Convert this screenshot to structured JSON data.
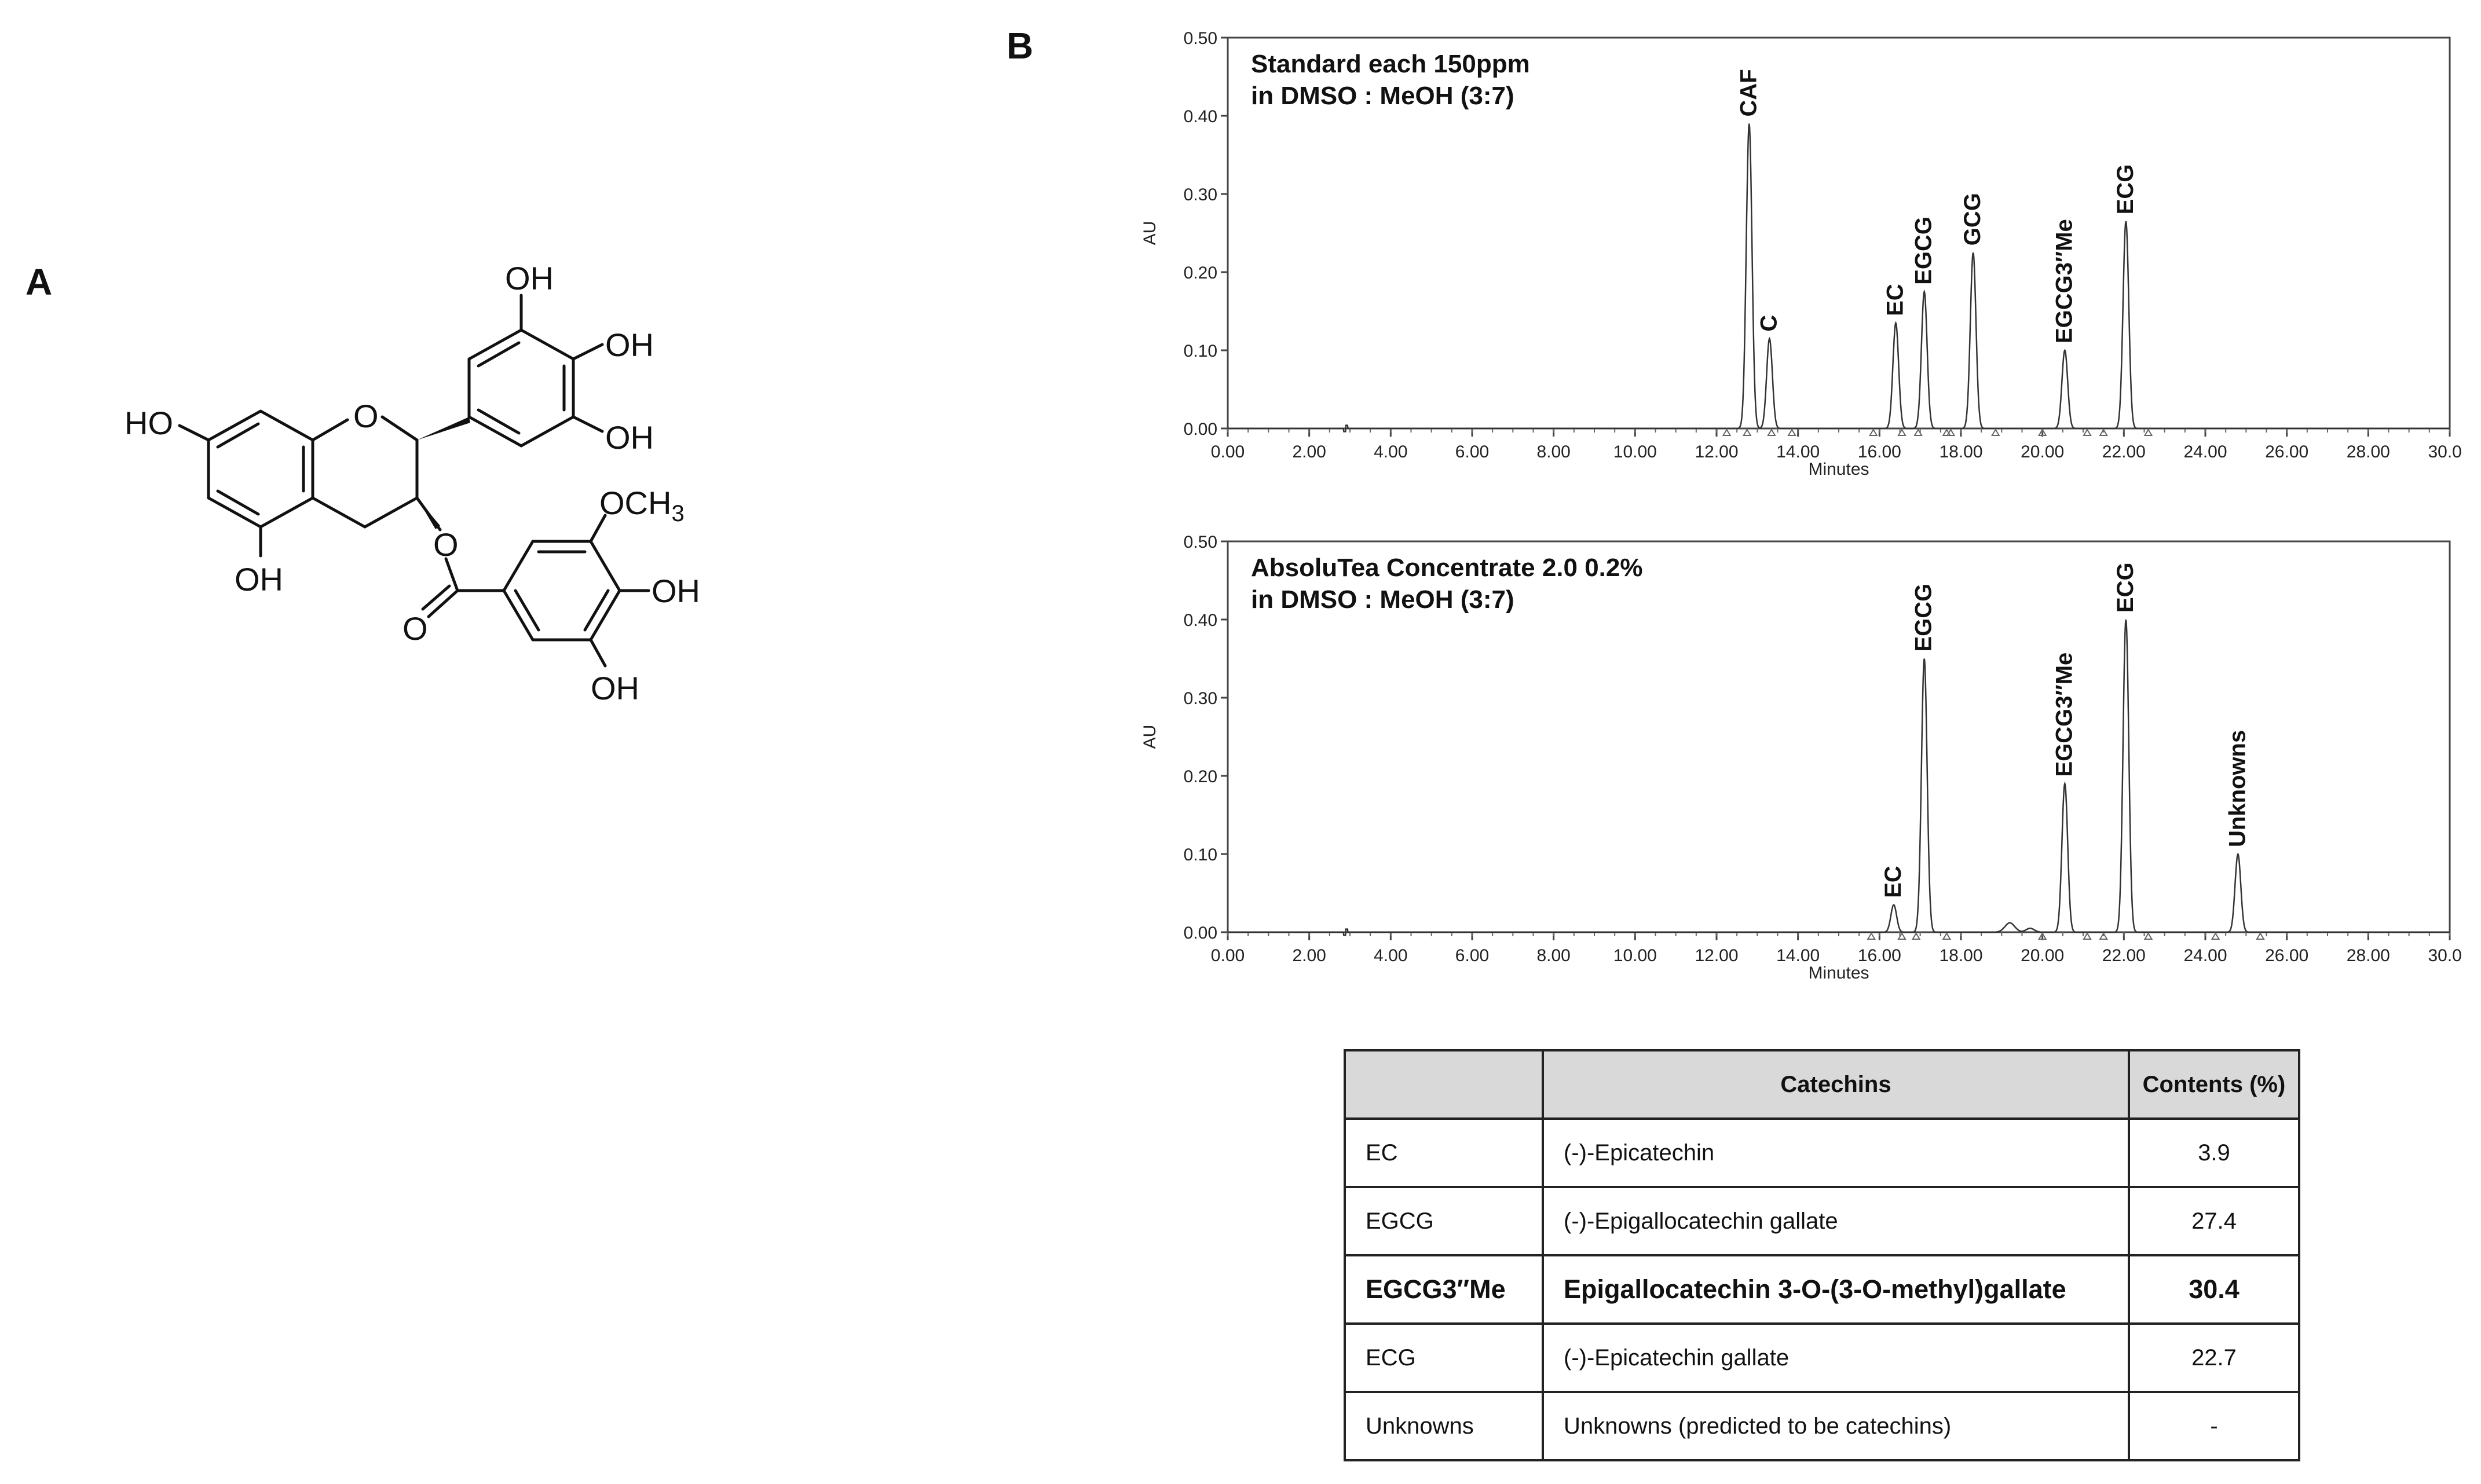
{
  "panel_a_label": "A",
  "panel_b_label": "B",
  "structure_labels": {
    "oh_top": "OH",
    "oh_right": "OH",
    "oh_ring_bottom": "OH",
    "ho_left": "HO",
    "o_ring": "O",
    "o_ester": "O",
    "o_carbonyl": "O",
    "och3": "OCH",
    "och3_sub": "3",
    "oh_gallate_right": "OH",
    "oh_gallate_bottom": "OH",
    "oh_a_bottom": "OH"
  },
  "chart_data": [
    {
      "type": "line",
      "title": "Standard each 150ppm",
      "subtitle": "in DMSO : MeOH (3:7)",
      "xlabel": "Minutes",
      "ylabel": "AU",
      "xlim": [
        0,
        30
      ],
      "ylim": [
        0,
        0.5
      ],
      "xticks": [
        "0.00",
        "2.00",
        "4.00",
        "6.00",
        "8.00",
        "10.00",
        "12.00",
        "14.00",
        "16.00",
        "18.00",
        "20.00",
        "22.00",
        "24.00",
        "26.00",
        "28.00",
        "30.00"
      ],
      "yticks": [
        "0.00",
        "0.10",
        "0.20",
        "0.30",
        "0.40",
        "0.50"
      ],
      "peaks": [
        {
          "label": "CAF",
          "rt": 12.8,
          "height": 0.39
        },
        {
          "label": "C",
          "rt": 13.3,
          "height": 0.115
        },
        {
          "label": "EC",
          "rt": 16.4,
          "height": 0.135
        },
        {
          "label": "EGCG",
          "rt": 17.1,
          "height": 0.175
        },
        {
          "label": "GCG",
          "rt": 18.3,
          "height": 0.225
        },
        {
          "label": "EGCG3″Me",
          "rt": 20.55,
          "height": 0.1
        },
        {
          "label": "ECG",
          "rt": 22.05,
          "height": 0.265
        }
      ]
    },
    {
      "type": "line",
      "title": "AbsoluTea Concentrate 2.0 0.2%",
      "subtitle": "in DMSO : MeOH (3:7)",
      "xlabel": "Minutes",
      "ylabel": "AU",
      "xlim": [
        0,
        30
      ],
      "ylim": [
        0,
        0.5
      ],
      "xticks": [
        "0.00",
        "2.00",
        "4.00",
        "6.00",
        "8.00",
        "10.00",
        "12.00",
        "14.00",
        "16.00",
        "18.00",
        "20.00",
        "22.00",
        "24.00",
        "26.00",
        "28.00",
        "30.00"
      ],
      "yticks": [
        "0.00",
        "0.10",
        "0.20",
        "0.30",
        "0.40",
        "0.50"
      ],
      "peaks": [
        {
          "label": "EC",
          "rt": 16.35,
          "height": 0.035
        },
        {
          "label": "EGCG",
          "rt": 17.1,
          "height": 0.35
        },
        {
          "label": "EGCG3″Me",
          "rt": 20.55,
          "height": 0.19
        },
        {
          "label": "ECG",
          "rt": 22.05,
          "height": 0.4
        },
        {
          "label": "Unknowns",
          "rt": 24.8,
          "height": 0.1
        }
      ]
    }
  ],
  "table": {
    "headers": [
      "",
      "Catechins",
      "Contents (%)"
    ],
    "rows": [
      [
        "EC",
        "(-)-Epicatechin",
        "3.9"
      ],
      [
        "EGCG",
        "(-)-Epigallocatechin gallate",
        "27.4"
      ],
      [
        "EGCG3″Me",
        "Epigallocatechin 3-O-(3-O-methyl)gallate",
        "30.4"
      ],
      [
        "ECG",
        "(-)-Epicatechin gallate",
        "22.7"
      ],
      [
        "Unknowns",
        "Unknowns  (predicted to be catechins)",
        "-"
      ]
    ]
  }
}
